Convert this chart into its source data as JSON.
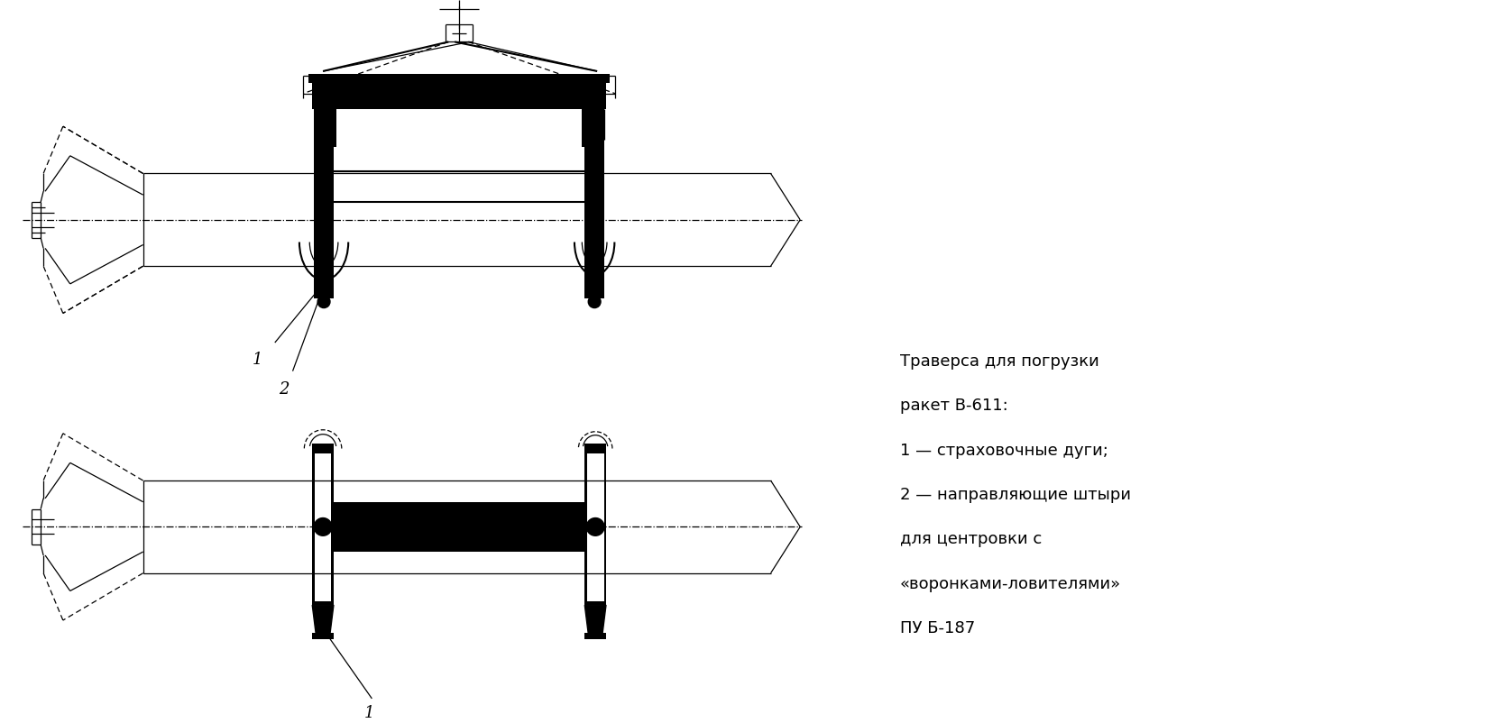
{
  "bg_color": "#ffffff",
  "line_color": "#000000",
  "text_color": "#000000",
  "caption_lines": [
    "Траверса для погрузки",
    "ракет В-611:",
    "1 — страховочные дуги;",
    "2 — направляющие штыри",
    "для центровки с",
    "«воронками-ловителями»",
    "ПУ Б-187"
  ],
  "font_size_caption": 13,
  "font_size_label": 13
}
